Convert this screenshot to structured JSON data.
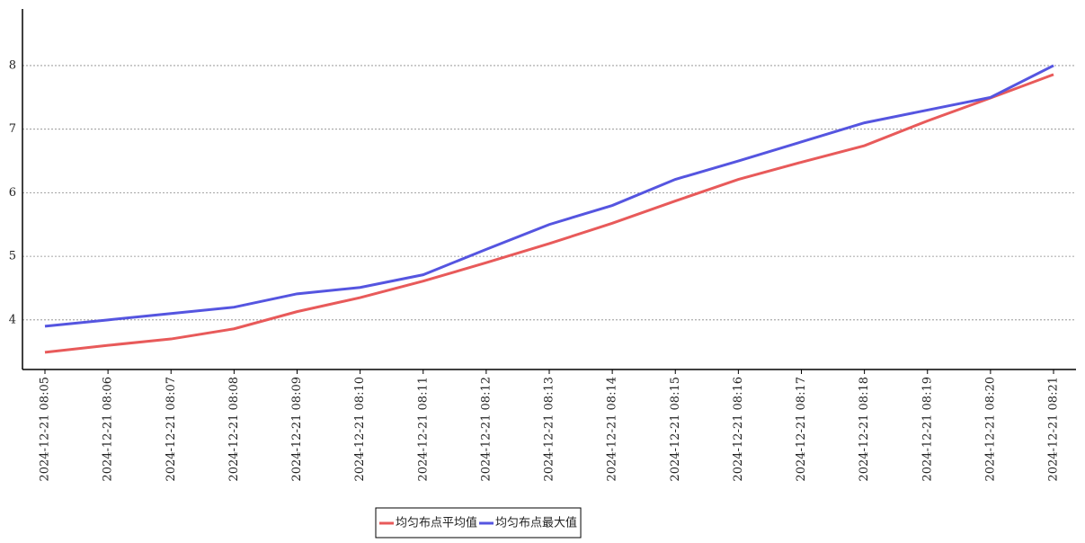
{
  "chart_data": {
    "type": "line",
    "categories": [
      "2024-12-21  08:05",
      "2024-12-21  08:06",
      "2024-12-21  08:07",
      "2024-12-21  08:08",
      "2024-12-21  08:09",
      "2024-12-21  08:10",
      "2024-12-21  08:11",
      "2024-12-21  08:12",
      "2024-12-21  08:13",
      "2024-12-21  08:14",
      "2024-12-21  08:15",
      "2024-12-21  08:16",
      "2024-12-21  08:17",
      "2024-12-21  08:18",
      "2024-12-21  08:19",
      "2024-12-21  08:20",
      "2024-12-21  08:21"
    ],
    "series": [
      {
        "name": "均匀布点平均值",
        "color": "#e85a5a",
        "values": [
          3.49,
          3.6,
          3.7,
          3.86,
          4.13,
          4.35,
          4.61,
          4.9,
          5.2,
          5.52,
          5.87,
          6.21,
          6.48,
          6.74,
          7.13,
          7.49,
          7.86
        ]
      },
      {
        "name": "均匀布点最大值",
        "color": "#5555e0",
        "values": [
          3.9,
          4.0,
          4.1,
          4.2,
          4.41,
          4.51,
          4.71,
          5.11,
          5.5,
          5.8,
          6.21,
          6.5,
          6.8,
          7.1,
          7.3,
          7.5,
          8.0
        ]
      }
    ],
    "ylim": [
      3.22,
      8.89
    ],
    "yticks": [
      4,
      5,
      6,
      7,
      8
    ],
    "grid": true,
    "legend": "bottom"
  }
}
